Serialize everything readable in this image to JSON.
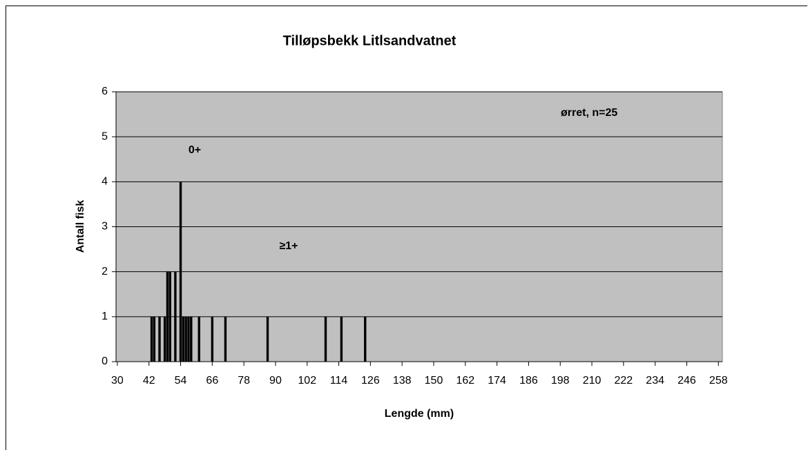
{
  "chart_data": {
    "type": "bar",
    "title": "Tilløpsbekk Litlsandvatnet",
    "xlabel": "Lengde (mm)",
    "ylabel": "Antall fisk",
    "annotations": [
      "0+",
      "≥1+",
      "ørret, n=25"
    ],
    "x": [
      43,
      44,
      46,
      48,
      49,
      50,
      52,
      54,
      55,
      56,
      57,
      58,
      61,
      66,
      71,
      87,
      109,
      115,
      124
    ],
    "values": [
      1,
      1,
      1,
      1,
      2,
      2,
      2,
      4,
      1,
      1,
      1,
      1,
      1,
      1,
      1,
      1,
      1,
      1,
      1
    ],
    "color": "#000000",
    "background": "#c0c0c0",
    "xlim": [
      29.5,
      259.5
    ],
    "xticks": [
      30,
      42,
      54,
      66,
      78,
      90,
      102,
      114,
      126,
      138,
      150,
      162,
      174,
      186,
      198,
      210,
      222,
      234,
      246,
      258
    ],
    "ylim": [
      0,
      6
    ],
    "yticks": [
      0,
      1,
      2,
      3,
      4,
      5,
      6
    ],
    "grid": true
  }
}
